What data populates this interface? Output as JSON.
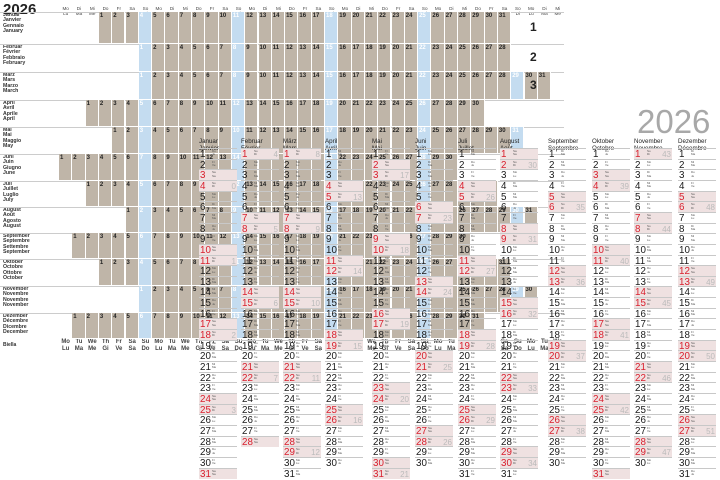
{
  "year": "2026",
  "weekdays_de": [
    "Mo",
    "Di",
    "Mi",
    "Do",
    "Fr",
    "Sa",
    "So"
  ],
  "weekdays_fr": [
    "Lu",
    "Ma",
    "Me",
    "Je",
    "Ve",
    "Sa",
    "Di"
  ],
  "weekdays_it_en": [
    "Mo",
    "Tu",
    "We",
    "Th",
    "Fr",
    "Sa",
    "Su"
  ],
  "weekdays_it": [
    "Lu",
    "Ma",
    "Me",
    "Gi",
    "Ve",
    "Sa",
    "Do"
  ],
  "quarters": [
    "1",
    "2",
    "3"
  ],
  "months": [
    {
      "de": "Januar",
      "fr": "Janvier",
      "it": "Gennaio",
      "en": "January",
      "days": 31
    },
    {
      "de": "Februar",
      "fr": "Février",
      "it": "Febbraio",
      "en": "February",
      "days": 28
    },
    {
      "de": "März",
      "fr": "Mars",
      "it": "Marzo",
      "en": "March",
      "days": 31
    },
    {
      "de": "April",
      "fr": "Avril",
      "it": "Aprile",
      "en": "April",
      "days": 30
    },
    {
      "de": "Mai",
      "fr": "Mai",
      "it": "Maggio",
      "en": "May",
      "days": 31
    },
    {
      "de": "Juni",
      "fr": "Juin",
      "it": "Giugno",
      "en": "June",
      "days": 30
    },
    {
      "de": "Juli",
      "fr": "Juillet",
      "it": "Luglio",
      "en": "July",
      "days": 31
    },
    {
      "de": "August",
      "fr": "Août",
      "it": "Agosto",
      "en": "August",
      "days": 31
    },
    {
      "de": "September",
      "fr": "Septembre",
      "it": "Settembre",
      "en": "September",
      "days": 30
    },
    {
      "de": "Oktober",
      "fr": "Octobre",
      "it": "Ottobre",
      "en": "October",
      "days": 31
    },
    {
      "de": "November",
      "fr": "Novembre",
      "it": "Novembre",
      "en": "November",
      "days": 30
    },
    {
      "de": "Dezember",
      "fr": "Décembre",
      "it": "Dicembre",
      "en": "December",
      "days": 31
    }
  ],
  "brand": "Biella",
  "colors": {
    "grid": "#bfb5a8",
    "week_blue": "#c4dcf0",
    "weekend_tint": "#efe1e1",
    "weekend_red": "#d9202e",
    "accent_text": "#222222"
  }
}
